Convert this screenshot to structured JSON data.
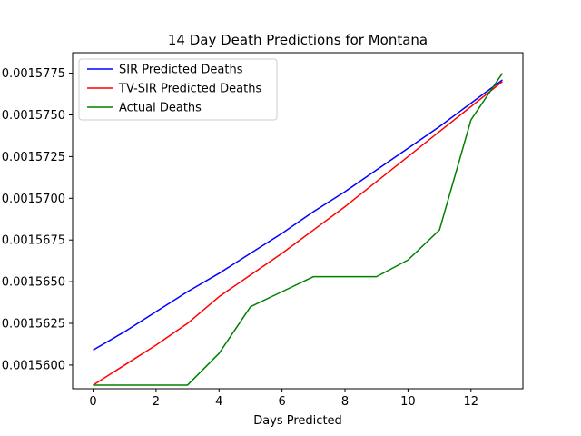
{
  "chart_data": {
    "type": "line",
    "title": "14 Day Death Predictions for Montana",
    "xlabel": "Days Predicted",
    "ylabel": "",
    "xlim": [
      -0.65,
      13.65
    ],
    "ylim": [
      0.00155858,
      0.00157873
    ],
    "x_ticks": [
      0,
      2,
      4,
      6,
      8,
      10,
      12
    ],
    "y_ticks": [
      0.00156,
      0.0015625,
      0.001565,
      0.0015675,
      0.00157,
      0.0015725,
      0.001575,
      0.0015775
    ],
    "y_tick_labels": [
      "0.0015600",
      "0.0015625",
      "0.0015650",
      "0.0015675",
      "0.0015700",
      "0.0015725",
      "0.0015750",
      "0.0015775"
    ],
    "grid": false,
    "legend_position": "top-left",
    "x": [
      0,
      1,
      2,
      3,
      4,
      5,
      6,
      7,
      8,
      9,
      10,
      11,
      12,
      13
    ],
    "series": [
      {
        "name": "SIR Predicted Deaths",
        "color": "#0000ff",
        "values": [
          0.0015609,
          0.001562,
          0.0015632,
          0.0015644,
          0.0015655,
          0.0015667,
          0.0015679,
          0.0015692,
          0.0015704,
          0.0015717,
          0.001573,
          0.0015743,
          0.0015757,
          0.0015771
        ]
      },
      {
        "name": "TV-SIR Predicted Deaths",
        "color": "#ff0000",
        "values": [
          0.0015588,
          0.00156,
          0.0015612,
          0.0015625,
          0.0015641,
          0.0015654,
          0.0015667,
          0.0015681,
          0.0015695,
          0.001571,
          0.0015725,
          0.001574,
          0.0015755,
          0.001577
        ]
      },
      {
        "name": "Actual Deaths",
        "color": "#008000",
        "values": [
          0.0015588,
          0.0015588,
          0.0015588,
          0.0015588,
          0.0015607,
          0.0015635,
          0.0015644,
          0.0015653,
          0.0015653,
          0.0015653,
          0.0015663,
          0.0015681,
          0.0015747,
          0.0015775
        ]
      }
    ]
  }
}
